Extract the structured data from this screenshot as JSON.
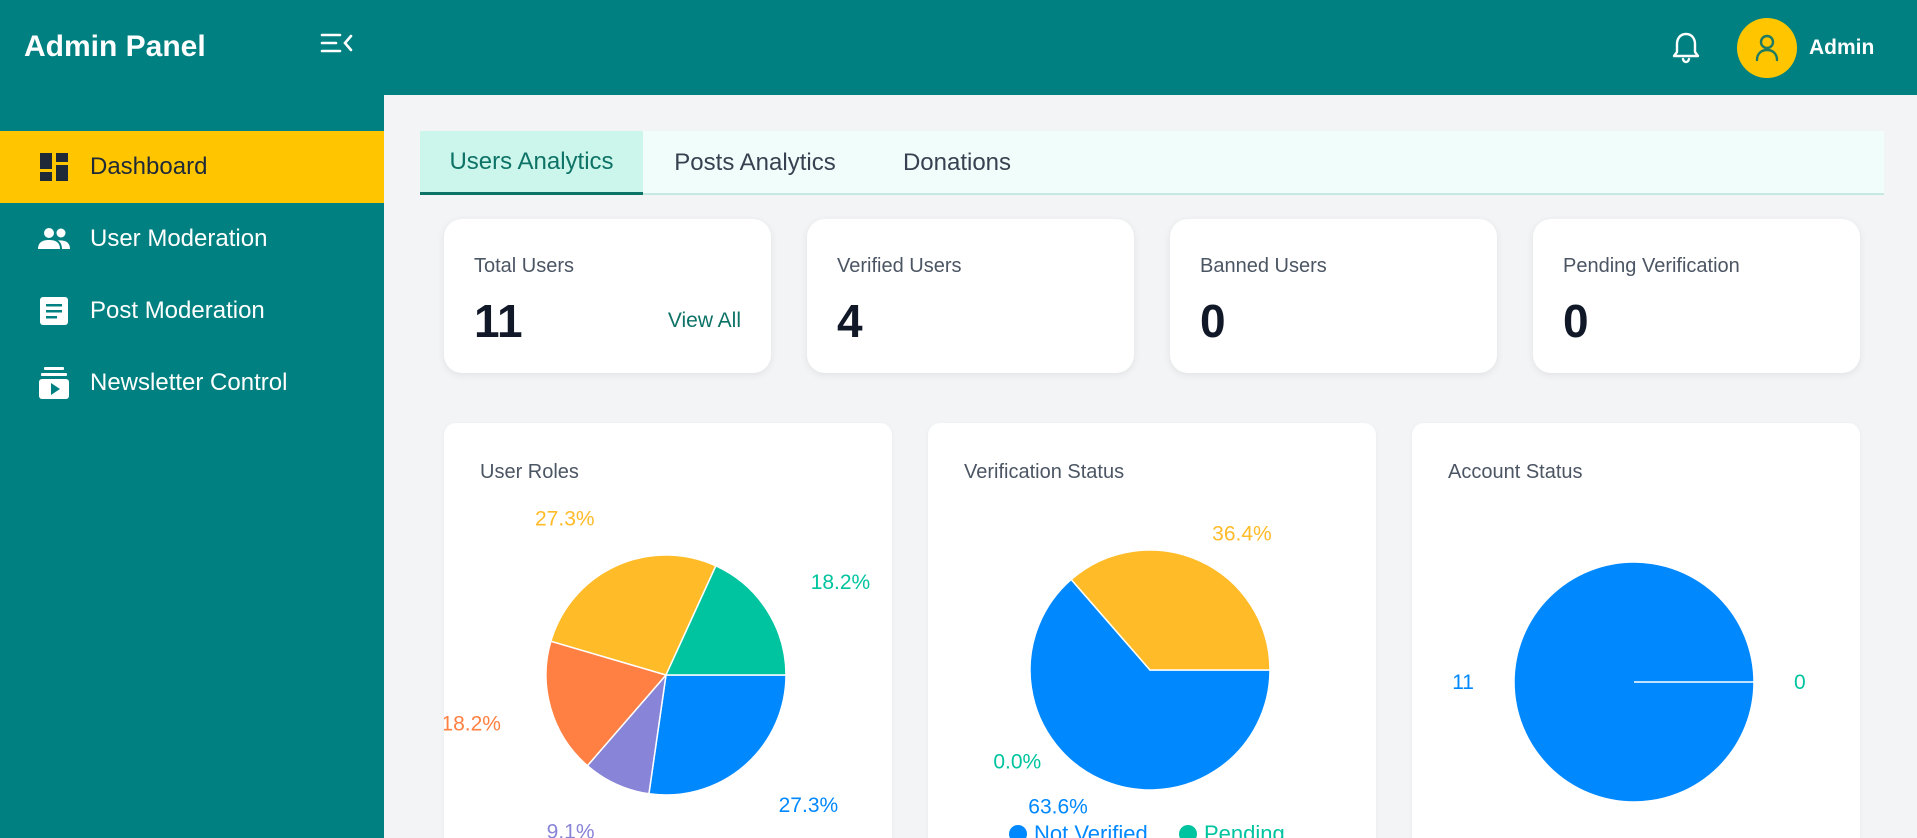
{
  "header": {
    "brand": "Admin Panel",
    "user_name": "Admin",
    "brand_color": "#008080",
    "accent_color": "#ffc600"
  },
  "sidebar": {
    "items": [
      {
        "label": "Dashboard",
        "icon": "dashboard-icon",
        "active": true
      },
      {
        "label": "User Moderation",
        "icon": "users-icon",
        "active": false
      },
      {
        "label": "Post Moderation",
        "icon": "document-icon",
        "active": false
      },
      {
        "label": "Newsletter Control",
        "icon": "subscriptions-icon",
        "active": false
      }
    ]
  },
  "tabs": [
    {
      "label": "Users Analytics",
      "active": true
    },
    {
      "label": "Posts Analytics",
      "active": false
    },
    {
      "label": "Donations",
      "active": false
    }
  ],
  "stats": [
    {
      "label": "Total Users",
      "value": "11",
      "link": "View All"
    },
    {
      "label": "Verified Users",
      "value": "4"
    },
    {
      "label": "Banned Users",
      "value": "0"
    },
    {
      "label": "Pending Verification",
      "value": "0"
    }
  ],
  "chart_data": [
    {
      "type": "pie",
      "title": "User Roles",
      "slices": [
        {
          "value": 27.3,
          "label": "27.3%",
          "color": "#0088fe"
        },
        {
          "value": 9.1,
          "label": "9.1%",
          "color": "#8884d8"
        },
        {
          "value": 18.2,
          "label": "18.2%",
          "color": "#ff8042"
        },
        {
          "value": 27.3,
          "label": "27.3%",
          "color": "#ffbb28"
        },
        {
          "value": 18.2,
          "label": "18.2%",
          "color": "#00c49f"
        }
      ]
    },
    {
      "type": "pie",
      "title": "Verification Status",
      "slices": [
        {
          "value": 63.6,
          "label": "63.6%",
          "color": "#0088fe",
          "name": "Not Verified"
        },
        {
          "value": 36.4,
          "label": "36.4%",
          "color": "#ffbb28"
        },
        {
          "value": 0.0,
          "label": "0.0%",
          "color": "#00c49f",
          "name": "Pending"
        }
      ],
      "legend": [
        "Not Verified",
        "Pending"
      ]
    },
    {
      "type": "pie",
      "title": "Account Status",
      "slices": [
        {
          "value": 11,
          "label": "11",
          "color": "#0088fe"
        },
        {
          "value": 0,
          "label": "0",
          "color": "#00c49f"
        }
      ]
    }
  ]
}
